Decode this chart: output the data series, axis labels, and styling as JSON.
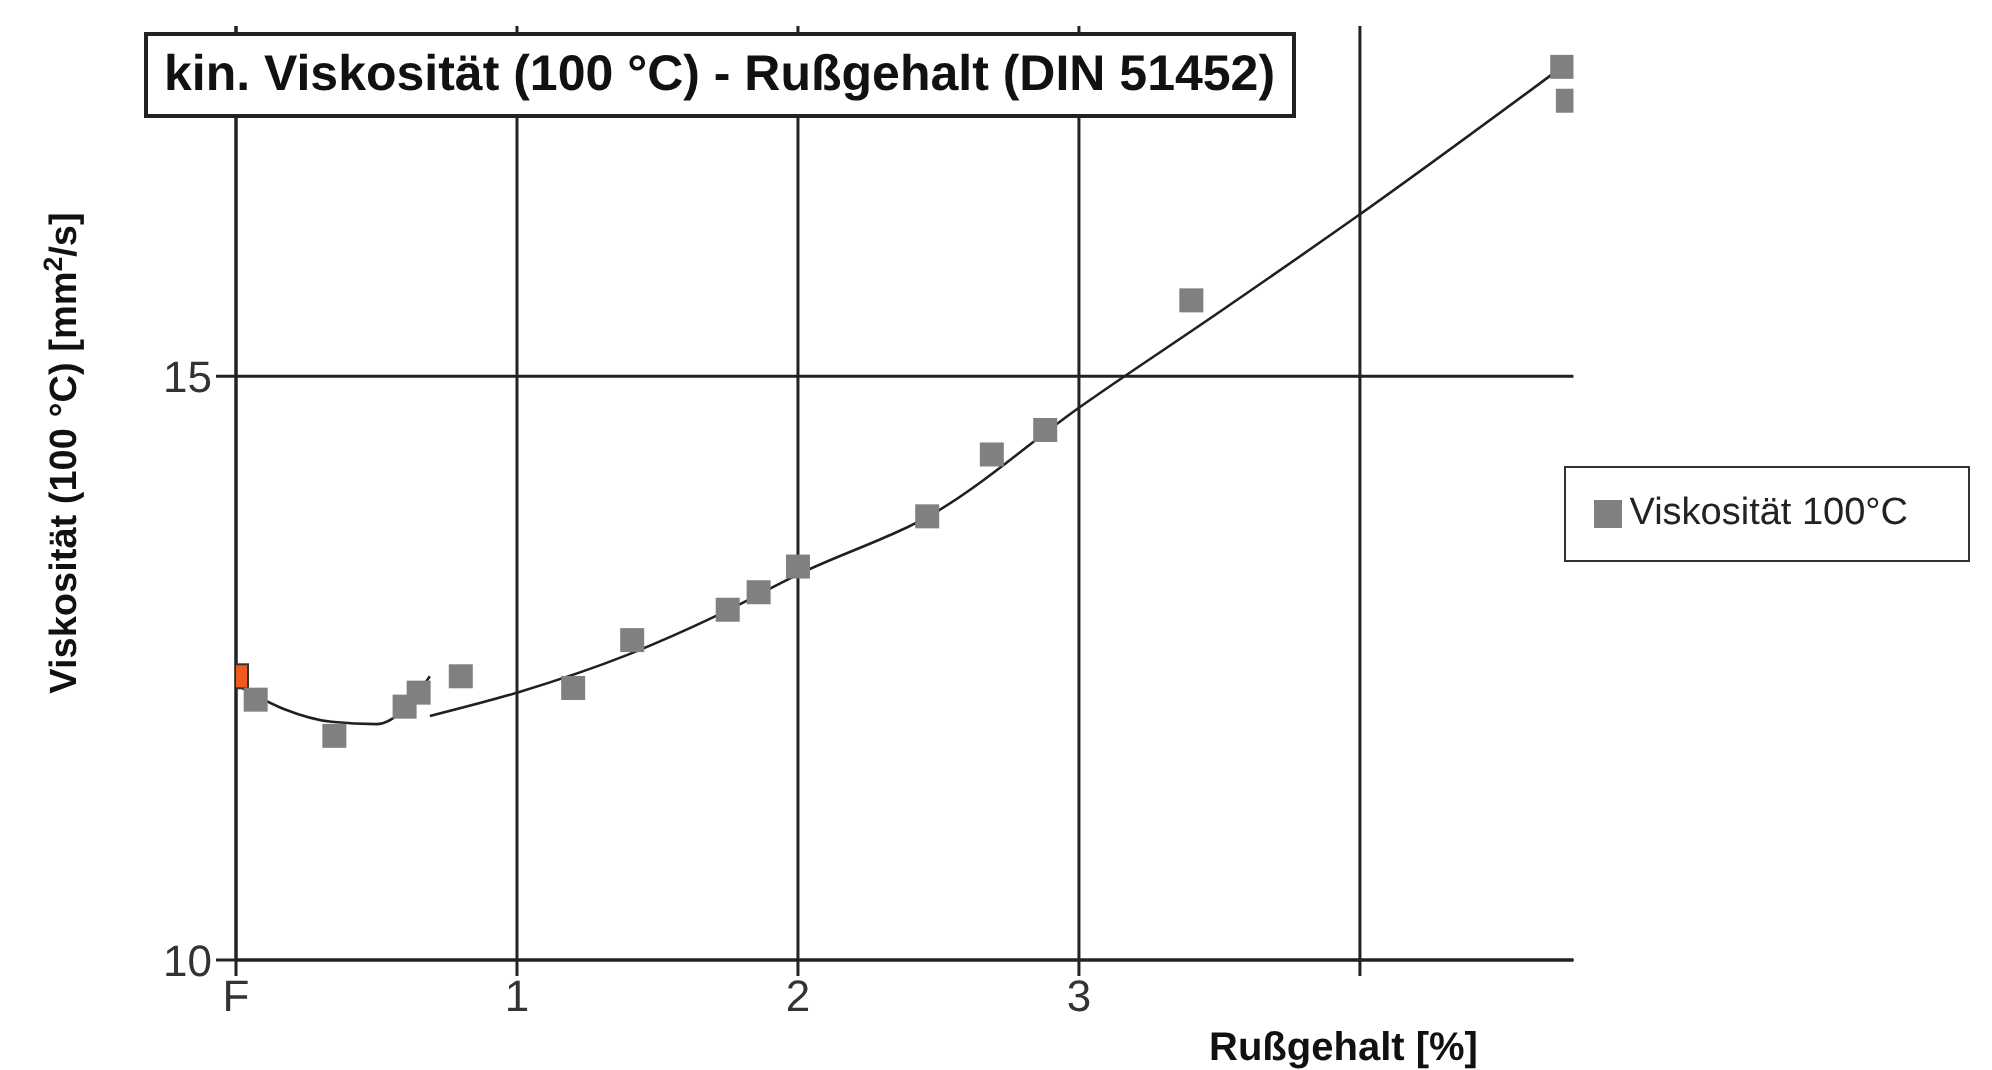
{
  "chart_data": {
    "type": "scatter",
    "title": "kin. Viskosität (100 °C) - Rußgehalt (DIN 51452)",
    "xlabel": "Rußgehalt [%]",
    "ylabel": "Viskosität (100 °C) [mm$^{2}$/s]",
    "x": [
      0,
      0.07,
      0.35,
      0.6,
      0.65,
      0.8,
      1.2,
      1.41,
      1.75,
      1.86,
      2.0,
      2.46,
      2.69,
      2.88,
      3.4,
      4.72,
      4.74
    ],
    "series": [
      {
        "name": "Viskosität 100°C",
        "color": "#808080",
        "colors": [
          "#f05a1e",
          "#808080",
          "#808080",
          "#808080",
          "#808080",
          "#808080",
          "#808080",
          "#808080",
          "#808080",
          "#808080",
          "#808080",
          "#808080",
          "#808080",
          "#808080",
          "#808080",
          "#808080",
          "#808080"
        ],
        "marker": "square",
        "values": [
          12.43,
          12.23,
          11.92,
          12.17,
          12.29,
          12.43,
          12.33,
          12.74,
          13.0,
          13.15,
          13.37,
          13.8,
          14.33,
          14.54,
          15.65,
          17.65,
          17.36
        ]
      },
      {
        "type": "line",
        "color": "#202020",
        "marker": "none",
        "x": [
          0,
          0.17,
          0.34,
          0.5,
          0.6,
          0.69
        ],
        "values": [
          12.36,
          12.15,
          12.04,
          12.02,
          12.15,
          12.43
        ]
      },
      {
        "type": "line",
        "color": "#202020",
        "marker": "none",
        "x": [
          0.69,
          1.0,
          1.4,
          1.72,
          1.99,
          2.5,
          3.0,
          3.5,
          3.99,
          4.72
        ],
        "values": [
          12.09,
          12.29,
          12.62,
          12.96,
          13.29,
          13.85,
          14.73,
          15.55,
          16.37,
          17.65
        ]
      }
    ],
    "xlim": [
      0,
      4.76
    ],
    "ylim": [
      10,
      18
    ],
    "xticks": [
      {
        "value": 0,
        "label": "F"
      },
      1,
      2,
      3,
      {
        "value": 4,
        "label": null
      }
    ],
    "yticks": [
      10,
      15
    ],
    "grid": true,
    "legend": "right"
  }
}
